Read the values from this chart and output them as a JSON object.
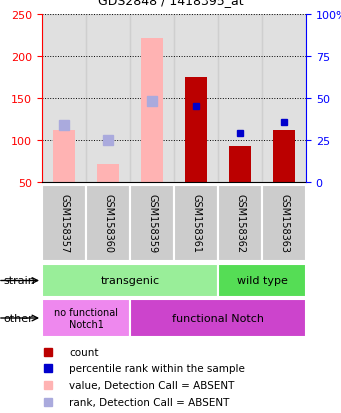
{
  "title": "GDS2848 / 1418395_at",
  "categories": [
    "GSM158357",
    "GSM158360",
    "GSM158359",
    "GSM158361",
    "GSM158362",
    "GSM158363"
  ],
  "bar_values_absent": [
    112,
    72,
    222,
    null,
    null,
    null
  ],
  "bar_values_present": [
    null,
    null,
    null,
    175,
    93,
    112
  ],
  "rank_absent": [
    118,
    100,
    147,
    null,
    null,
    null
  ],
  "rank_present": [
    null,
    null,
    null,
    140,
    108,
    122
  ],
  "ylim_left": [
    50,
    250
  ],
  "ylim_right": [
    0,
    100
  ],
  "yticks_left": [
    50,
    100,
    150,
    200,
    250
  ],
  "yticks_right": [
    0,
    25,
    50,
    75,
    100
  ],
  "ytick_labels_right": [
    "0",
    "25",
    "50",
    "75",
    "100%"
  ],
  "color_absent_bar": "#FFB3B3",
  "color_present_bar": "#BB0000",
  "color_absent_rank": "#AAAADD",
  "color_present_rank": "#0000CC",
  "color_bg_col": "#CCCCCC",
  "strain_row_color_trans": "#99EE99",
  "strain_row_color_wt": "#55DD55",
  "other_nofunc_color": "#EE88EE",
  "other_func_color": "#CC44CC",
  "legend_items": [
    "count",
    "percentile rank within the sample",
    "value, Detection Call = ABSENT",
    "rank, Detection Call = ABSENT"
  ],
  "legend_colors": [
    "#BB0000",
    "#0000CC",
    "#FFB3B3",
    "#AAAADD"
  ]
}
